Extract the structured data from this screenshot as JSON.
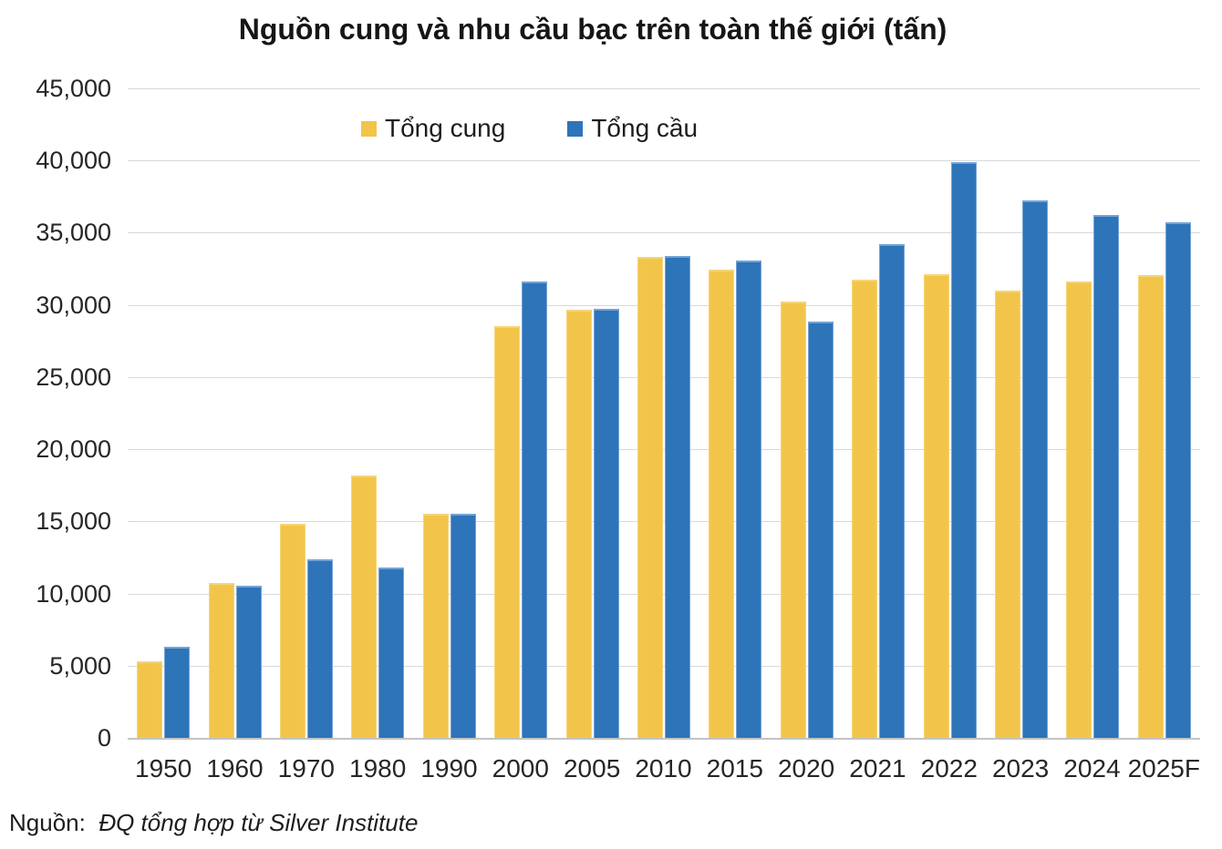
{
  "title": "Nguồn cung và nhu cầu bạc trên toàn thế giới (tấn)",
  "source": {
    "prefix": "Nguồn:",
    "text": "ĐQ tổng hợp từ Silver Institute"
  },
  "chart_data": {
    "type": "bar",
    "title": "Nguồn cung và nhu cầu bạc trên toàn thế giới (tấn)",
    "categories": [
      "1950",
      "1960",
      "1970",
      "1980",
      "1990",
      "2000",
      "2005",
      "2010",
      "2015",
      "2020",
      "2021",
      "2022",
      "2023",
      "2024",
      "2025F"
    ],
    "series": [
      {
        "name": "Tổng cung",
        "color": "#F2C54A",
        "edge_color": "#F6D478",
        "values": [
          5300,
          10700,
          14850,
          18200,
          15500,
          28500,
          29650,
          33350,
          32450,
          30250,
          31750,
          32150,
          31000,
          31600,
          32050
        ]
      },
      {
        "name": "Tổng cầu",
        "color": "#2E74B8",
        "edge_color": "#74A3D6",
        "values": [
          6300,
          10550,
          12350,
          11800,
          15500,
          31650,
          29700,
          33400,
          33050,
          28850,
          34200,
          39900,
          37250,
          36200,
          35700
        ]
      }
    ],
    "xlabel": "",
    "ylabel": "",
    "ylim": [
      0,
      45000
    ],
    "ytick_step": 5000,
    "ytick_labels": [
      "45,000",
      "40,000",
      "35,000",
      "30,000",
      "25,000",
      "20,000",
      "15,000",
      "10,000",
      "5,000",
      "0"
    ],
    "grid": true,
    "legend_position": "top-center"
  }
}
